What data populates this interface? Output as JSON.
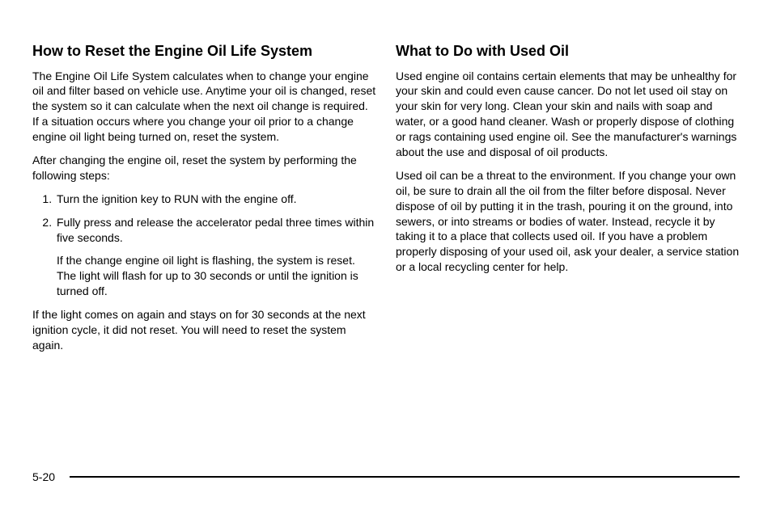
{
  "left": {
    "heading": "How to Reset the Engine Oil Life System",
    "p1": "The Engine Oil Life System calculates when to change your engine oil and filter based on vehicle use. Anytime your oil is changed, reset the system so it can calculate when the next oil change is required. If a situation occurs where you change your oil prior to a change engine oil light being turned on, reset the system.",
    "p2": "After changing the engine oil, reset the system by performing the following steps:",
    "step1": "Turn the ignition key to RUN with the engine off.",
    "step2": "Fully press and release the accelerator pedal three times within five seconds.",
    "step2_sub": "If the change engine oil light is flashing, the system is reset. The light will flash for up to 30 seconds or until the ignition is turned off.",
    "p3": "If the light comes on again and stays on for 30 seconds at the next ignition cycle, it did not reset. You will need to reset the system again."
  },
  "right": {
    "heading": "What to Do with Used Oil",
    "p1": "Used engine oil contains certain elements that may be unhealthy for your skin and could even cause cancer. Do not let used oil stay on your skin for very long. Clean your skin and nails with soap and water, or a good hand cleaner. Wash or properly dispose of clothing or rags containing used engine oil. See the manufacturer's warnings about the use and disposal of oil products.",
    "p2": "Used oil can be a threat to the environment. If you change your own oil, be sure to drain all the oil from the filter before disposal. Never dispose of oil by putting it in the trash, pouring it on the ground, into sewers, or into streams or bodies of water. Instead, recycle it by taking it to a place that collects used oil. If you have a problem properly disposing of your used oil, ask your dealer, a service station or a local recycling center for help."
  },
  "footer": {
    "page_number": "5-20"
  }
}
